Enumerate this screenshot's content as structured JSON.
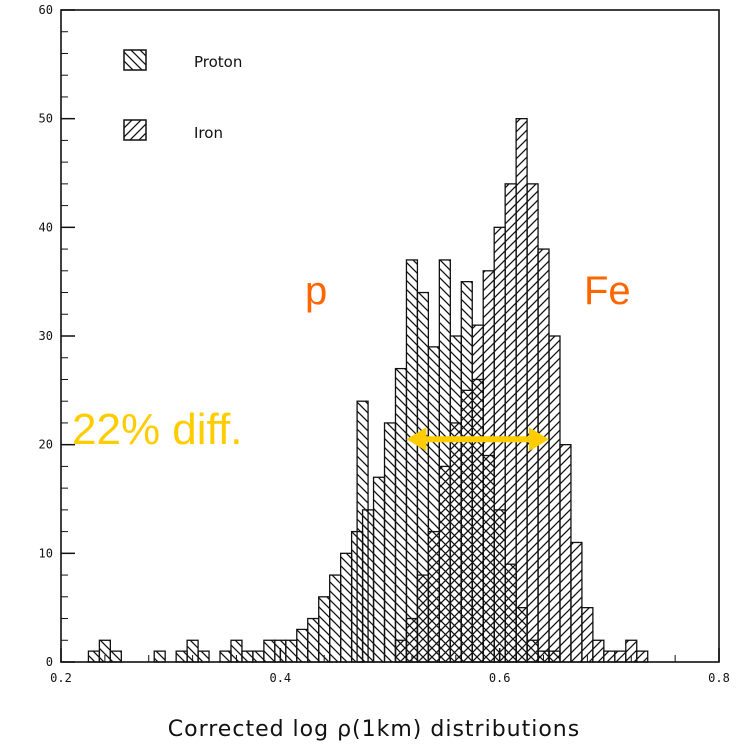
{
  "chart_data": {
    "type": "bar",
    "xlabel": "Corrected log ρ(1km) distributions",
    "xlim": [
      0.2,
      0.8
    ],
    "ylim": [
      0,
      60
    ],
    "xticks": [
      "0.2",
      "0.4",
      "0.6",
      "0.8"
    ],
    "yticks": [
      "0",
      "10",
      "20",
      "30",
      "40",
      "50",
      "60"
    ],
    "bin_width": 0.01,
    "legend": {
      "position": "top-left",
      "entries": [
        "Proton",
        "Iron"
      ]
    },
    "series": [
      {
        "name": "Proton",
        "hatch": "backslash",
        "bins": [
          {
            "x": 0.23,
            "y": 1
          },
          {
            "x": 0.24,
            "y": 2
          },
          {
            "x": 0.25,
            "y": 1
          },
          {
            "x": 0.29,
            "y": 1
          },
          {
            "x": 0.31,
            "y": 1
          },
          {
            "x": 0.32,
            "y": 2
          },
          {
            "x": 0.33,
            "y": 1
          },
          {
            "x": 0.35,
            "y": 1
          },
          {
            "x": 0.36,
            "y": 2
          },
          {
            "x": 0.37,
            "y": 1
          },
          {
            "x": 0.38,
            "y": 1
          },
          {
            "x": 0.39,
            "y": 2
          },
          {
            "x": 0.4,
            "y": 2
          },
          {
            "x": 0.41,
            "y": 2
          },
          {
            "x": 0.42,
            "y": 3
          },
          {
            "x": 0.43,
            "y": 4
          },
          {
            "x": 0.44,
            "y": 6
          },
          {
            "x": 0.45,
            "y": 8
          },
          {
            "x": 0.46,
            "y": 10
          },
          {
            "x": 0.47,
            "y": 12
          },
          {
            "x": 0.475,
            "y": 24
          },
          {
            "x": 0.48,
            "y": 14
          },
          {
            "x": 0.49,
            "y": 17
          },
          {
            "x": 0.5,
            "y": 22
          },
          {
            "x": 0.51,
            "y": 27
          },
          {
            "x": 0.52,
            "y": 37
          },
          {
            "x": 0.53,
            "y": 34
          },
          {
            "x": 0.54,
            "y": 29
          },
          {
            "x": 0.55,
            "y": 37
          },
          {
            "x": 0.56,
            "y": 30
          },
          {
            "x": 0.57,
            "y": 35
          },
          {
            "x": 0.58,
            "y": 26
          },
          {
            "x": 0.59,
            "y": 19
          },
          {
            "x": 0.6,
            "y": 14
          },
          {
            "x": 0.61,
            "y": 9
          },
          {
            "x": 0.62,
            "y": 5
          },
          {
            "x": 0.63,
            "y": 2
          },
          {
            "x": 0.64,
            "y": 1
          },
          {
            "x": 0.65,
            "y": 1
          }
        ]
      },
      {
        "name": "Iron",
        "hatch": "slash",
        "bins": [
          {
            "x": 0.51,
            "y": 2
          },
          {
            "x": 0.52,
            "y": 4
          },
          {
            "x": 0.53,
            "y": 8
          },
          {
            "x": 0.54,
            "y": 12
          },
          {
            "x": 0.55,
            "y": 18
          },
          {
            "x": 0.56,
            "y": 22
          },
          {
            "x": 0.57,
            "y": 25
          },
          {
            "x": 0.58,
            "y": 31
          },
          {
            "x": 0.59,
            "y": 36
          },
          {
            "x": 0.6,
            "y": 40
          },
          {
            "x": 0.61,
            "y": 44
          },
          {
            "x": 0.62,
            "y": 50
          },
          {
            "x": 0.63,
            "y": 44
          },
          {
            "x": 0.64,
            "y": 38
          },
          {
            "x": 0.65,
            "y": 30
          },
          {
            "x": 0.66,
            "y": 20
          },
          {
            "x": 0.67,
            "y": 11
          },
          {
            "x": 0.68,
            "y": 5
          },
          {
            "x": 0.69,
            "y": 2
          },
          {
            "x": 0.7,
            "y": 1
          },
          {
            "x": 0.71,
            "y": 1
          },
          {
            "x": 0.72,
            "y": 2
          },
          {
            "x": 0.73,
            "y": 1
          }
        ]
      }
    ],
    "annotations": [
      {
        "text": "p",
        "x": 0.505,
        "y": 33,
        "color": "#ff6600"
      },
      {
        "text": "Fe",
        "x": 0.66,
        "y": 33,
        "color": "#ff6600"
      },
      {
        "text": "22% diff.",
        "x": 0.215,
        "y": 20,
        "color": "#ffcc00"
      }
    ],
    "arrow": {
      "x_from": 0.515,
      "x_to": 0.645,
      "y": 20.5,
      "color": "#ffcc00"
    }
  }
}
